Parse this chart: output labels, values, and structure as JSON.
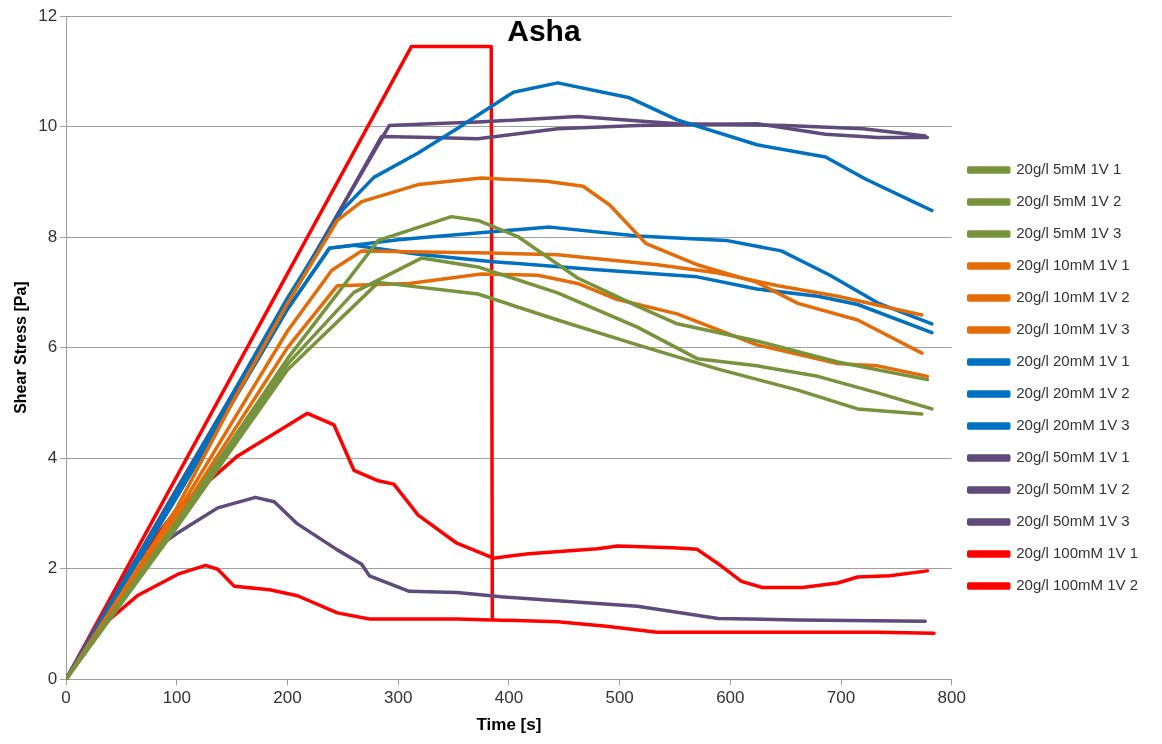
{
  "chart_data": {
    "type": "line",
    "title": "Asha",
    "xlabel": "Time [s]",
    "ylabel": "Shear Stress [Pa]",
    "xlim": [
      0,
      800
    ],
    "xticks": [
      0,
      100,
      200,
      300,
      400,
      500,
      600,
      700,
      800
    ],
    "ylim": [
      0,
      12
    ],
    "yticks": [
      0,
      2,
      4,
      6,
      8,
      10,
      12
    ],
    "grid": "y",
    "legend": "right",
    "marker": "none",
    "line_style": "solid",
    "series": [
      {
        "name": "20g/l 5mM 1V 1",
        "color": "#77933c",
        "x": [
          0,
          100,
          200,
          282,
          348,
          372,
          408,
          462,
          516,
          552,
          624,
          697,
          778
        ],
        "values": [
          0,
          2.85,
          5.8,
          7.94,
          8.37,
          8.3,
          8.01,
          7.26,
          6.75,
          6.43,
          6.12,
          5.74,
          5.42
        ]
      },
      {
        "name": "20g/l 5mM 1V 2",
        "color": "#77933c",
        "x": [
          0,
          100,
          200,
          260,
          321,
          372,
          444,
          516,
          570,
          624,
          679,
          733,
          782
        ],
        "values": [
          0,
          2.8,
          5.7,
          7.0,
          7.62,
          7.46,
          6.99,
          6.37,
          5.8,
          5.67,
          5.48,
          5.18,
          4.89
        ]
      },
      {
        "name": "20g/l 5mM 1V 3",
        "color": "#77933c",
        "x": [
          0,
          100,
          200,
          282,
          372,
          444,
          516,
          589,
          661,
          715,
          773
        ],
        "values": [
          0,
          2.75,
          5.6,
          7.18,
          6.97,
          6.5,
          6.05,
          5.61,
          5.23,
          4.89,
          4.8
        ]
      },
      {
        "name": "20g/l 10mM 1V 1",
        "color": "#e36c09",
        "x": [
          0,
          100,
          150,
          200,
          245,
          267,
          318,
          375,
          434,
          467,
          491,
          524,
          570,
          624,
          661,
          715,
          773
        ],
        "values": [
          0,
          3.1,
          5.0,
          6.8,
          8.3,
          8.64,
          8.95,
          9.07,
          9.01,
          8.92,
          8.58,
          7.88,
          7.5,
          7.18,
          6.8,
          6.5,
          5.9
        ]
      },
      {
        "name": "20g/l 10mM 1V 2",
        "color": "#e36c09",
        "x": [
          0,
          100,
          200,
          240,
          267,
          383,
          444,
          534,
          589,
          643,
          697,
          773
        ],
        "values": [
          0,
          3.0,
          6.3,
          7.4,
          7.75,
          7.71,
          7.68,
          7.5,
          7.35,
          7.12,
          6.93,
          6.59
        ]
      },
      {
        "name": "20g/l 10mM 1V 3",
        "color": "#e36c09",
        "x": [
          0,
          100,
          200,
          245,
          310,
          375,
          426,
          462,
          498,
          552,
          624,
          697,
          733,
          778
        ],
        "values": [
          0,
          2.9,
          6.0,
          7.12,
          7.16,
          7.33,
          7.31,
          7.16,
          6.87,
          6.61,
          6.05,
          5.71,
          5.67,
          5.48
        ]
      },
      {
        "name": "20g/l 20mM 1V 1",
        "color": "#0070c0",
        "x": [
          0,
          100,
          200,
          250,
          278,
          318,
          353,
          404,
          444,
          509,
          552,
          624,
          686,
          722,
          765,
          782
        ],
        "values": [
          0,
          3.4,
          6.9,
          8.5,
          9.08,
          9.52,
          9.96,
          10.62,
          10.79,
          10.52,
          10.12,
          9.67,
          9.45,
          9.05,
          8.64,
          8.48
        ]
      },
      {
        "name": "20g/l 20mM 1V 2",
        "color": "#0070c0",
        "x": [
          0,
          100,
          200,
          238,
          300,
          328,
          404,
          437,
          516,
          596,
          646,
          690,
          733,
          782
        ],
        "values": [
          0,
          3.3,
          6.7,
          7.8,
          7.95,
          8.0,
          8.13,
          8.18,
          8.02,
          7.94,
          7.75,
          7.31,
          6.81,
          6.43
        ]
      },
      {
        "name": "20g/l 20mM 1V 3",
        "color": "#0070c0",
        "x": [
          0,
          100,
          200,
          238,
          260,
          318,
          383,
          480,
          570,
          624,
          679,
          715,
          782
        ],
        "values": [
          0,
          3.3,
          6.7,
          7.8,
          7.85,
          7.69,
          7.56,
          7.41,
          7.28,
          7.06,
          6.93,
          6.78,
          6.27
        ]
      },
      {
        "name": "20g/l 50mM 1V 1",
        "color": "#604a7b",
        "x": [
          0,
          100,
          200,
          292,
          330,
          372,
          462,
          552,
          650,
          720,
          776
        ],
        "values": [
          0,
          3.45,
          6.85,
          10.02,
          10.05,
          10.08,
          10.18,
          10.05,
          10.02,
          9.96,
          9.83
        ]
      },
      {
        "name": "20g/l 50mM 1V 2",
        "color": "#604a7b",
        "x": [
          0,
          100,
          200,
          285,
          330,
          372,
          444,
          516,
          624,
          686,
          733,
          778
        ],
        "values": [
          0,
          3.4,
          6.8,
          9.82,
          9.8,
          9.78,
          9.96,
          10.02,
          10.05,
          9.86,
          9.8,
          9.8
        ]
      },
      {
        "name": "20g/l 50mM 1V 3",
        "color": "#604a7b",
        "x": [
          0,
          30,
          65,
          101,
          137,
          171,
          188,
          209,
          245,
          267,
          274,
          310,
          353,
          393,
          444,
          516,
          589,
          661,
          776
        ],
        "values": [
          0,
          1.0,
          2.15,
          2.65,
          3.1,
          3.29,
          3.21,
          2.81,
          2.34,
          2.08,
          1.87,
          1.59,
          1.57,
          1.49,
          1.42,
          1.32,
          1.1,
          1.07,
          1.05
        ]
      },
      {
        "name": "20g/l 100mM 1V 1",
        "color": "#ff0000",
        "x": [
          0,
          50,
          101,
          155,
          218,
          242,
          260,
          282,
          296,
          318,
          353,
          386,
          418,
          480,
          498,
          548,
          570,
          589,
          610,
          629,
          665,
          697,
          715,
          744,
          778
        ],
        "values": [
          0,
          1.77,
          3.1,
          4.04,
          4.81,
          4.6,
          3.78,
          3.59,
          3.53,
          2.97,
          2.46,
          2.19,
          2.27,
          2.36,
          2.41,
          2.38,
          2.35,
          2.09,
          1.77,
          1.66,
          1.66,
          1.74,
          1.85,
          1.87,
          1.96
        ]
      },
      {
        "name": "20g/l 100mM 1V 2",
        "color": "#ff0000",
        "x": [
          0,
          28,
          65,
          101,
          126,
          137,
          152,
          184,
          209,
          245,
          274,
          353,
          444,
          488,
          534,
          624,
          733,
          784
        ],
        "values": [
          0,
          0.89,
          1.52,
          1.9,
          2.06,
          1.99,
          1.68,
          1.62,
          1.51,
          1.2,
          1.09,
          1.09,
          1.04,
          0.96,
          0.85,
          0.85,
          0.85,
          0.83
        ]
      },
      {
        "color": "#ff0000",
        "x": [
          0,
          312,
          384,
          385
        ],
        "values": [
          0,
          11.45,
          11.45,
          1.1
        ]
      }
    ]
  }
}
